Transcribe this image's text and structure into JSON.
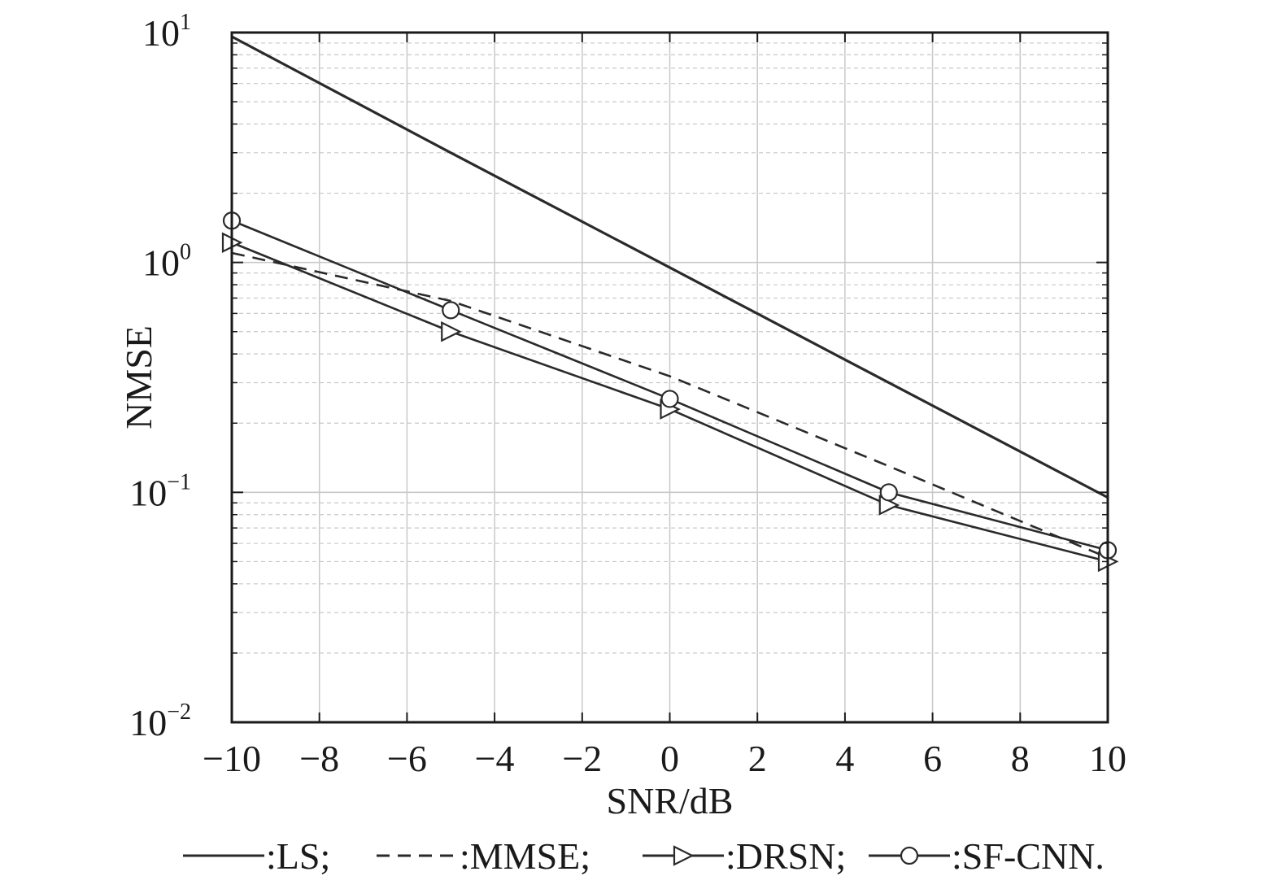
{
  "chart_data": {
    "type": "line",
    "title": "",
    "xlabel": "SNR/dB",
    "ylabel": "NMSE",
    "xlim": [
      -10,
      10
    ],
    "ylim": [
      0.01,
      10
    ],
    "yscale": "log",
    "grid": true,
    "legend_position": "bottom",
    "x": [
      -10,
      -5,
      0,
      5,
      10
    ],
    "x_ticks": [
      -10,
      -8,
      -6,
      -4,
      -2,
      0,
      2,
      4,
      6,
      8,
      10
    ],
    "x_tick_labels": [
      "−10",
      "−8",
      "−6",
      "−4",
      "−2",
      "0",
      "2",
      "4",
      "6",
      "8",
      "10"
    ],
    "y_ticks": [
      {
        "value": 10,
        "base": "10",
        "exp": "1"
      },
      {
        "value": 1,
        "base": "10",
        "exp": "0"
      },
      {
        "value": 0.1,
        "base": "10",
        "exp": "−1"
      },
      {
        "value": 0.01,
        "base": "10",
        "exp": "−2"
      }
    ],
    "series": [
      {
        "name": ":LS;",
        "style": "solid",
        "marker": "none",
        "values": [
          9.6,
          3.0,
          0.95,
          0.3,
          0.095
        ]
      },
      {
        "name": ":MMSE;",
        "style": "dashed",
        "marker": "none",
        "values": [
          1.1,
          0.68,
          0.32,
          0.13,
          0.052
        ]
      },
      {
        "name": ":DRSN;",
        "style": "solid",
        "marker": "triangle-right",
        "values": [
          1.22,
          0.5,
          0.23,
          0.088,
          0.05
        ]
      },
      {
        "name": ":SF-CNN.",
        "style": "solid",
        "marker": "circle",
        "values": [
          1.52,
          0.62,
          0.255,
          0.1,
          0.056
        ]
      }
    ],
    "colors": {
      "line": "#2a2a2a",
      "grid": "#c8c8c8",
      "axis": "#1a1a1a"
    }
  }
}
